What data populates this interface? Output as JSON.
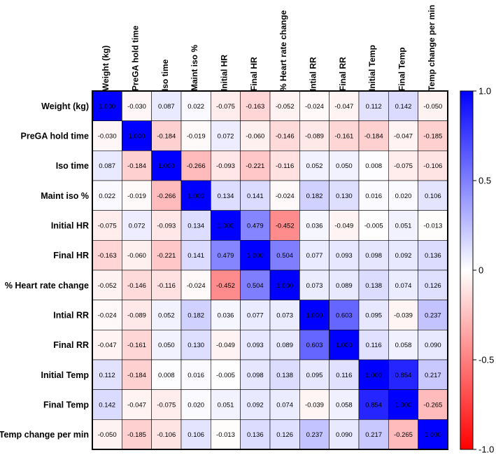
{
  "chart_data": {
    "type": "heatmap",
    "variables": [
      "Weight (kg)",
      "PreGA hold time",
      "Iso time",
      "Maint iso %",
      "Initial HR",
      "Final HR",
      "% Heart rate change",
      "Intial RR",
      "Final RR",
      "Initial Temp",
      "Final Temp",
      "Temp change per min"
    ],
    "row_labels": [
      "Weight (kg)",
      "PreGA hold time",
      "Iso time",
      "Maint iso %",
      "Initial HR",
      "Final HR",
      "% Heart rate change",
      "Intial RR",
      "Final RR",
      "Initial Temp",
      "Final Temp",
      "Temp change per min"
    ],
    "values": [
      [
        1.0,
        -0.03,
        0.087,
        0.022,
        -0.075,
        -0.163,
        -0.052,
        -0.024,
        -0.047,
        0.112,
        0.142,
        -0.05
      ],
      [
        -0.03,
        1.0,
        -0.184,
        -0.019,
        0.072,
        -0.06,
        -0.146,
        -0.089,
        -0.161,
        -0.184,
        -0.047,
        -0.185
      ],
      [
        0.087,
        -0.184,
        1.0,
        -0.266,
        -0.093,
        -0.221,
        -0.116,
        0.052,
        0.05,
        0.008,
        -0.075,
        -0.106
      ],
      [
        0.022,
        -0.019,
        -0.266,
        1.0,
        0.134,
        0.141,
        -0.024,
        0.182,
        0.13,
        0.016,
        0.02,
        0.106
      ],
      [
        -0.075,
        0.072,
        -0.093,
        0.134,
        1.0,
        0.479,
        -0.452,
        0.036,
        -0.049,
        -0.005,
        0.051,
        -0.013
      ],
      [
        -0.163,
        -0.06,
        -0.221,
        0.141,
        0.479,
        1.0,
        0.504,
        0.077,
        0.093,
        0.098,
        0.092,
        0.136
      ],
      [
        -0.052,
        -0.146,
        -0.116,
        -0.024,
        -0.452,
        0.504,
        1.0,
        0.073,
        0.089,
        0.138,
        0.074,
        0.126
      ],
      [
        -0.024,
        -0.089,
        0.052,
        0.182,
        0.036,
        0.077,
        0.073,
        1.0,
        0.603,
        0.095,
        -0.039,
        0.237
      ],
      [
        -0.047,
        -0.161,
        0.05,
        0.13,
        -0.049,
        0.093,
        0.089,
        0.603,
        1.0,
        0.116,
        0.058,
        0.09
      ],
      [
        0.112,
        -0.184,
        0.008,
        0.016,
        -0.005,
        0.098,
        0.138,
        0.095,
        0.116,
        1.0,
        0.854,
        0.217
      ],
      [
        0.142,
        -0.047,
        -0.075,
        0.02,
        0.051,
        0.092,
        0.074,
        -0.039,
        0.058,
        0.854,
        1.0,
        -0.265
      ],
      [
        -0.05,
        -0.185,
        -0.106,
        0.106,
        -0.013,
        0.136,
        0.126,
        0.237,
        0.09,
        0.217,
        -0.265,
        1.0
      ]
    ],
    "value_format": "3 decimals",
    "colorbar": {
      "range": [
        -1.0,
        1.0
      ],
      "ticks": [
        1.0,
        0.5,
        0,
        -0.5,
        -1.0
      ],
      "tick_labels": [
        "1.0",
        "0.5",
        "0",
        "-0.5",
        "-1.0"
      ],
      "high_color": "#0000ff",
      "mid_color": "#ffffff",
      "low_color": "#ff0000"
    }
  }
}
